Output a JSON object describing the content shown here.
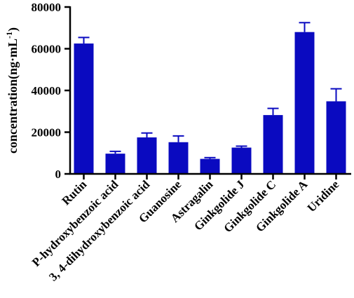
{
  "chart_data": {
    "type": "bar",
    "categories": [
      "Rutin",
      "P-hydroxybenzoic acid",
      "3, 4-dihydroxybenzoic acid",
      "Guanosine",
      "Astragalin",
      "Ginkgolide J",
      "Ginkgolide C",
      "Ginkgolide A",
      "Uridine"
    ],
    "values": [
      62500,
      9700,
      17500,
      15200,
      7200,
      12600,
      28200,
      68000,
      34800
    ],
    "errors": [
      2900,
      1100,
      2100,
      3000,
      600,
      700,
      3200,
      4500,
      6000
    ],
    "ylabel": "concentration(ng·mL",
    "ylabel_superscript": "-1",
    "ylabel_suffix": ")",
    "ylim": [
      0,
      80000
    ],
    "yticks": [
      0,
      20000,
      40000,
      60000,
      80000
    ],
    "ytick_labels": [
      "0",
      "20000",
      "40000",
      "60000",
      "80000"
    ],
    "grid": false,
    "colors": {
      "bar": "#0a0ac0",
      "error_bar": "#0a0ac0",
      "axis": "#000000"
    }
  }
}
